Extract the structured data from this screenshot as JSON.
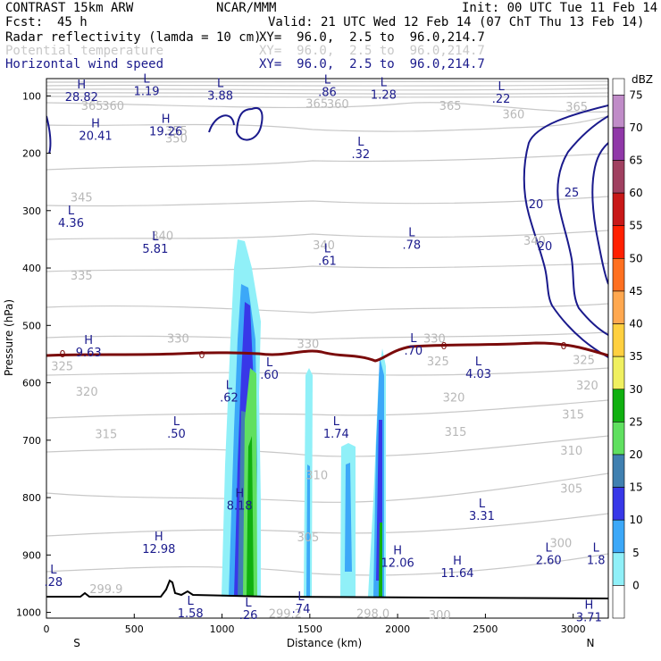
{
  "header": {
    "model": "CONTRAST 15km ARW",
    "center": "NCAR/MMM",
    "init": "Init: 00 UTC Tue 11 Feb 14",
    "fcst_label": "Fcst:",
    "fcst_value": "45 h",
    "valid": "Valid: 21 UTC Wed 12 Feb 14 (07 ChT Thu 13 Feb 14)",
    "fields": [
      {
        "name": "Radar reflectivity (lamda = 10 cm)",
        "xy": "XY=  96.0,  2.5 to  96.0,214.7",
        "color": "#000000"
      },
      {
        "name": "Potential temperature",
        "xy": "XY=  96.0,  2.5 to  96.0,214.7",
        "color": "#c8c8c8"
      },
      {
        "name": "Horizontal wind speed",
        "xy": "XY=  96.0,  2.5 to  96.0,214.7",
        "color": "#1a1a8c"
      }
    ]
  },
  "chart_data": {
    "type": "cross-section",
    "xlabel": "Distance (km)",
    "ylabel": "Pressure (hPa)",
    "xlim": [
      0,
      3200
    ],
    "ylim_hpa": [
      70,
      1010
    ],
    "x_ticks": [
      "0",
      "500",
      "1000",
      "1500",
      "2000",
      "2500",
      "3000"
    ],
    "x_tick_values": [
      0,
      500,
      1000,
      1500,
      2000,
      2500,
      3000
    ],
    "y_ticks": [
      "100",
      "200",
      "300",
      "400",
      "500",
      "600",
      "700",
      "800",
      "900",
      "1000"
    ],
    "y_tick_values": [
      100,
      200,
      300,
      400,
      500,
      600,
      700,
      800,
      900,
      1000
    ],
    "end_left": "S",
    "end_right": "N",
    "colorbar": {
      "unit": "dBZ",
      "levels": [
        "75",
        "70",
        "65",
        "60",
        "55",
        "50",
        "45",
        "40",
        "35",
        "30",
        "25",
        "20",
        "15",
        "10",
        "5",
        "0"
      ],
      "colors": [
        "#c08cc8",
        "#9038a8",
        "#a04060",
        "#c81818",
        "#ff2000",
        "#ff7020",
        "#ffa850",
        "#ffd040",
        "#f0f060",
        "#10b010",
        "#60e060",
        "#4080b0",
        "#3838e8",
        "#3ca8f8",
        "#90f0f8",
        "#ffffff"
      ]
    },
    "freezing_level_label": "0",
    "theta_labels": [
      {
        "text": "365",
        "x": 260,
        "p": 118
      },
      {
        "text": "360",
        "x": 380,
        "p": 118
      },
      {
        "text": "365",
        "x": 1540,
        "p": 114
      },
      {
        "text": "360",
        "x": 1660,
        "p": 115
      },
      {
        "text": "365",
        "x": 2300,
        "p": 118
      },
      {
        "text": "360",
        "x": 2660,
        "p": 133
      },
      {
        "text": "365",
        "x": 3020,
        "p": 120
      },
      {
        "text": "355",
        "x": 740,
        "p": 162
      },
      {
        "text": "350",
        "x": 740,
        "p": 175
      },
      {
        "text": "345",
        "x": 200,
        "p": 278
      },
      {
        "text": "340",
        "x": 660,
        "p": 345
      },
      {
        "text": "340",
        "x": 1580,
        "p": 361
      },
      {
        "text": "340",
        "x": 2780,
        "p": 353
      },
      {
        "text": "335",
        "x": 200,
        "p": 414
      },
      {
        "text": "330",
        "x": 750,
        "p": 524
      },
      {
        "text": "330",
        "x": 1490,
        "p": 533
      },
      {
        "text": "330",
        "x": 2210,
        "p": 524
      },
      {
        "text": "325",
        "x": 90,
        "p": 572
      },
      {
        "text": "325",
        "x": 2230,
        "p": 563
      },
      {
        "text": "325",
        "x": 3060,
        "p": 561
      },
      {
        "text": "320",
        "x": 230,
        "p": 616
      },
      {
        "text": "320",
        "x": 2320,
        "p": 626
      },
      {
        "text": "320",
        "x": 3080,
        "p": 605
      },
      {
        "text": "315",
        "x": 340,
        "p": 690
      },
      {
        "text": "315",
        "x": 2330,
        "p": 686
      },
      {
        "text": "315",
        "x": 3000,
        "p": 656
      },
      {
        "text": "310",
        "x": 1540,
        "p": 762
      },
      {
        "text": "310",
        "x": 2990,
        "p": 719
      },
      {
        "text": "305",
        "x": 1490,
        "p": 870
      },
      {
        "text": "305",
        "x": 2990,
        "p": 785
      },
      {
        "text": "300",
        "x": 2930,
        "p": 880
      },
      {
        "text": "300",
        "x": 2240,
        "p": 1005
      },
      {
        "text": "299.9",
        "x": 340,
        "p": 960
      },
      {
        "text": "299.2",
        "x": 1360,
        "p": 1003
      },
      {
        "text": "298.0",
        "x": 1860,
        "p": 1003
      }
    ],
    "wind_contour_labels": [
      "20",
      "25",
      "20"
    ],
    "wind_extrema": [
      {
        "type": "H",
        "value": "28.82",
        "x": 200,
        "p": 90
      },
      {
        "type": "L",
        "value": "1.19",
        "x": 570,
        "p": 80
      },
      {
        "type": "L",
        "value": "3.88",
        "x": 990,
        "p": 88
      },
      {
        "type": "L",
        "value": ".86",
        "x": 1600,
        "p": 82
      },
      {
        "type": "L",
        "value": "1.28",
        "x": 1920,
        "p": 86
      },
      {
        "type": "L",
        "value": ".22",
        "x": 2590,
        "p": 93
      },
      {
        "type": "H",
        "value": "20.41",
        "x": 280,
        "p": 158
      },
      {
        "type": "H",
        "value": "19.26",
        "x": 680,
        "p": 150
      },
      {
        "type": "L",
        "value": ".32",
        "x": 1790,
        "p": 190
      },
      {
        "type": "L",
        "value": "4.36",
        "x": 140,
        "p": 310
      },
      {
        "type": "L",
        "value": "5.81",
        "x": 620,
        "p": 355
      },
      {
        "type": "L",
        "value": ".78",
        "x": 2080,
        "p": 348
      },
      {
        "type": "L",
        "value": ".61",
        "x": 1600,
        "p": 376
      },
      {
        "type": "H",
        "value": "9.63",
        "x": 240,
        "p": 535
      },
      {
        "type": "L",
        "value": ".70",
        "x": 2090,
        "p": 532
      },
      {
        "type": "L",
        "value": ".60",
        "x": 1270,
        "p": 574
      },
      {
        "type": "L",
        "value": "4.03",
        "x": 2460,
        "p": 573
      },
      {
        "type": "L",
        "value": ".62",
        "x": 1040,
        "p": 614
      },
      {
        "type": "L",
        "value": ".50",
        "x": 740,
        "p": 677
      },
      {
        "type": "L",
        "value": "1.74",
        "x": 1650,
        "p": 677
      },
      {
        "type": "H",
        "value": "8.18",
        "x": 1100,
        "p": 802
      },
      {
        "type": "L",
        "value": "3.31",
        "x": 2480,
        "p": 820
      },
      {
        "type": "H",
        "value": "12.98",
        "x": 640,
        "p": 878
      },
      {
        "type": "H",
        "value": "12.06",
        "x": 2000,
        "p": 902
      },
      {
        "type": "H",
        "value": "11.64",
        "x": 2340,
        "p": 920
      },
      {
        "type": "L",
        "value": "2.60",
        "x": 2860,
        "p": 897
      },
      {
        "type": "L",
        "value": "1.8",
        "x": 3130,
        "p": 897
      },
      {
        "type": "L",
        "value": ".28",
        "x": 40,
        "p": 935
      },
      {
        "type": "L",
        "value": "1.58",
        "x": 820,
        "p": 990
      },
      {
        "type": "L",
        "value": ".26",
        "x": 1150,
        "p": 993
      },
      {
        "type": "L",
        "value": ".74",
        "x": 1450,
        "p": 982
      },
      {
        "type": "H",
        "value": "3.71",
        "x": 3090,
        "p": 997
      }
    ]
  }
}
